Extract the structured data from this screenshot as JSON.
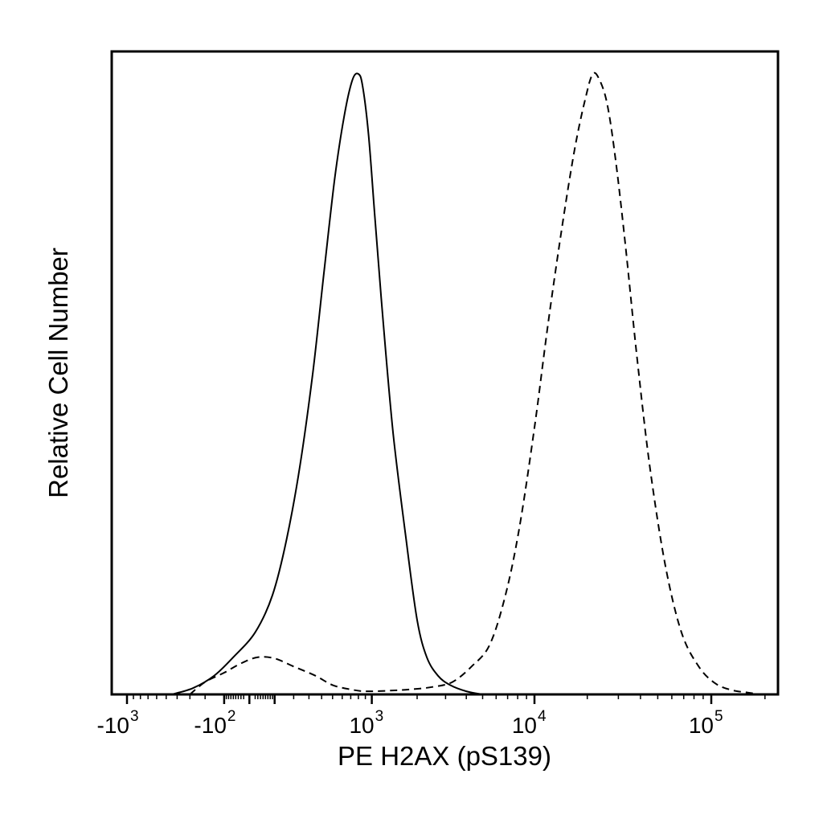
{
  "chart_data": {
    "type": "line",
    "title": "",
    "xlabel": "PE H2AX (pS139)",
    "ylabel": "Relative Cell Number",
    "x_scale": "biexponential",
    "xlim": [
      -1500,
      250000
    ],
    "ylim": [
      0,
      1.0
    ],
    "grid": false,
    "legend": "none",
    "x_ticks": [
      {
        "base": "-10",
        "exp": "3",
        "value": -1000
      },
      {
        "base": "-10",
        "exp": "2",
        "value": -100
      },
      {
        "base": "10",
        "exp": "3",
        "value": 1000
      },
      {
        "base": "10",
        "exp": "4",
        "value": 10000
      },
      {
        "base": "10",
        "exp": "5",
        "value": 100000
      }
    ],
    "series": [
      {
        "style": "solid",
        "color": "#000000",
        "x": [
          -450,
          -280,
          -150,
          -60,
          20,
          90,
          160,
          240,
          330,
          420,
          520,
          620,
          720,
          800,
          860,
          950,
          1050,
          1200,
          1400,
          1700,
          2000,
          2300,
          2700,
          3200,
          4000,
          5000
        ],
        "y": [
          0.0,
          0.01,
          0.03,
          0.06,
          0.1,
          0.16,
          0.25,
          0.37,
          0.52,
          0.68,
          0.83,
          0.93,
          0.99,
          1.0,
          0.98,
          0.9,
          0.77,
          0.6,
          0.42,
          0.25,
          0.12,
          0.06,
          0.03,
          0.015,
          0.005,
          0.0
        ]
      },
      {
        "style": "dashed",
        "color": "#000000",
        "x": [
          -300,
          -200,
          -100,
          -30,
          30,
          100,
          200,
          350,
          500,
          700,
          900,
          1300,
          1800,
          2500,
          3300,
          4300,
          5500,
          6800,
          8200,
          10000,
          12000,
          14500,
          17000,
          19500,
          21500,
          23500,
          26000,
          29000,
          33000,
          38000,
          45000,
          55000,
          68000,
          85000,
          105000,
          130000,
          160000,
          190000
        ],
        "y": [
          0.0,
          0.02,
          0.035,
          0.05,
          0.06,
          0.058,
          0.045,
          0.03,
          0.015,
          0.008,
          0.005,
          0.006,
          0.008,
          0.012,
          0.02,
          0.045,
          0.08,
          0.16,
          0.27,
          0.43,
          0.6,
          0.76,
          0.88,
          0.96,
          1.0,
          0.99,
          0.95,
          0.86,
          0.72,
          0.55,
          0.37,
          0.21,
          0.1,
          0.045,
          0.018,
          0.007,
          0.003,
          0.0
        ]
      }
    ]
  }
}
